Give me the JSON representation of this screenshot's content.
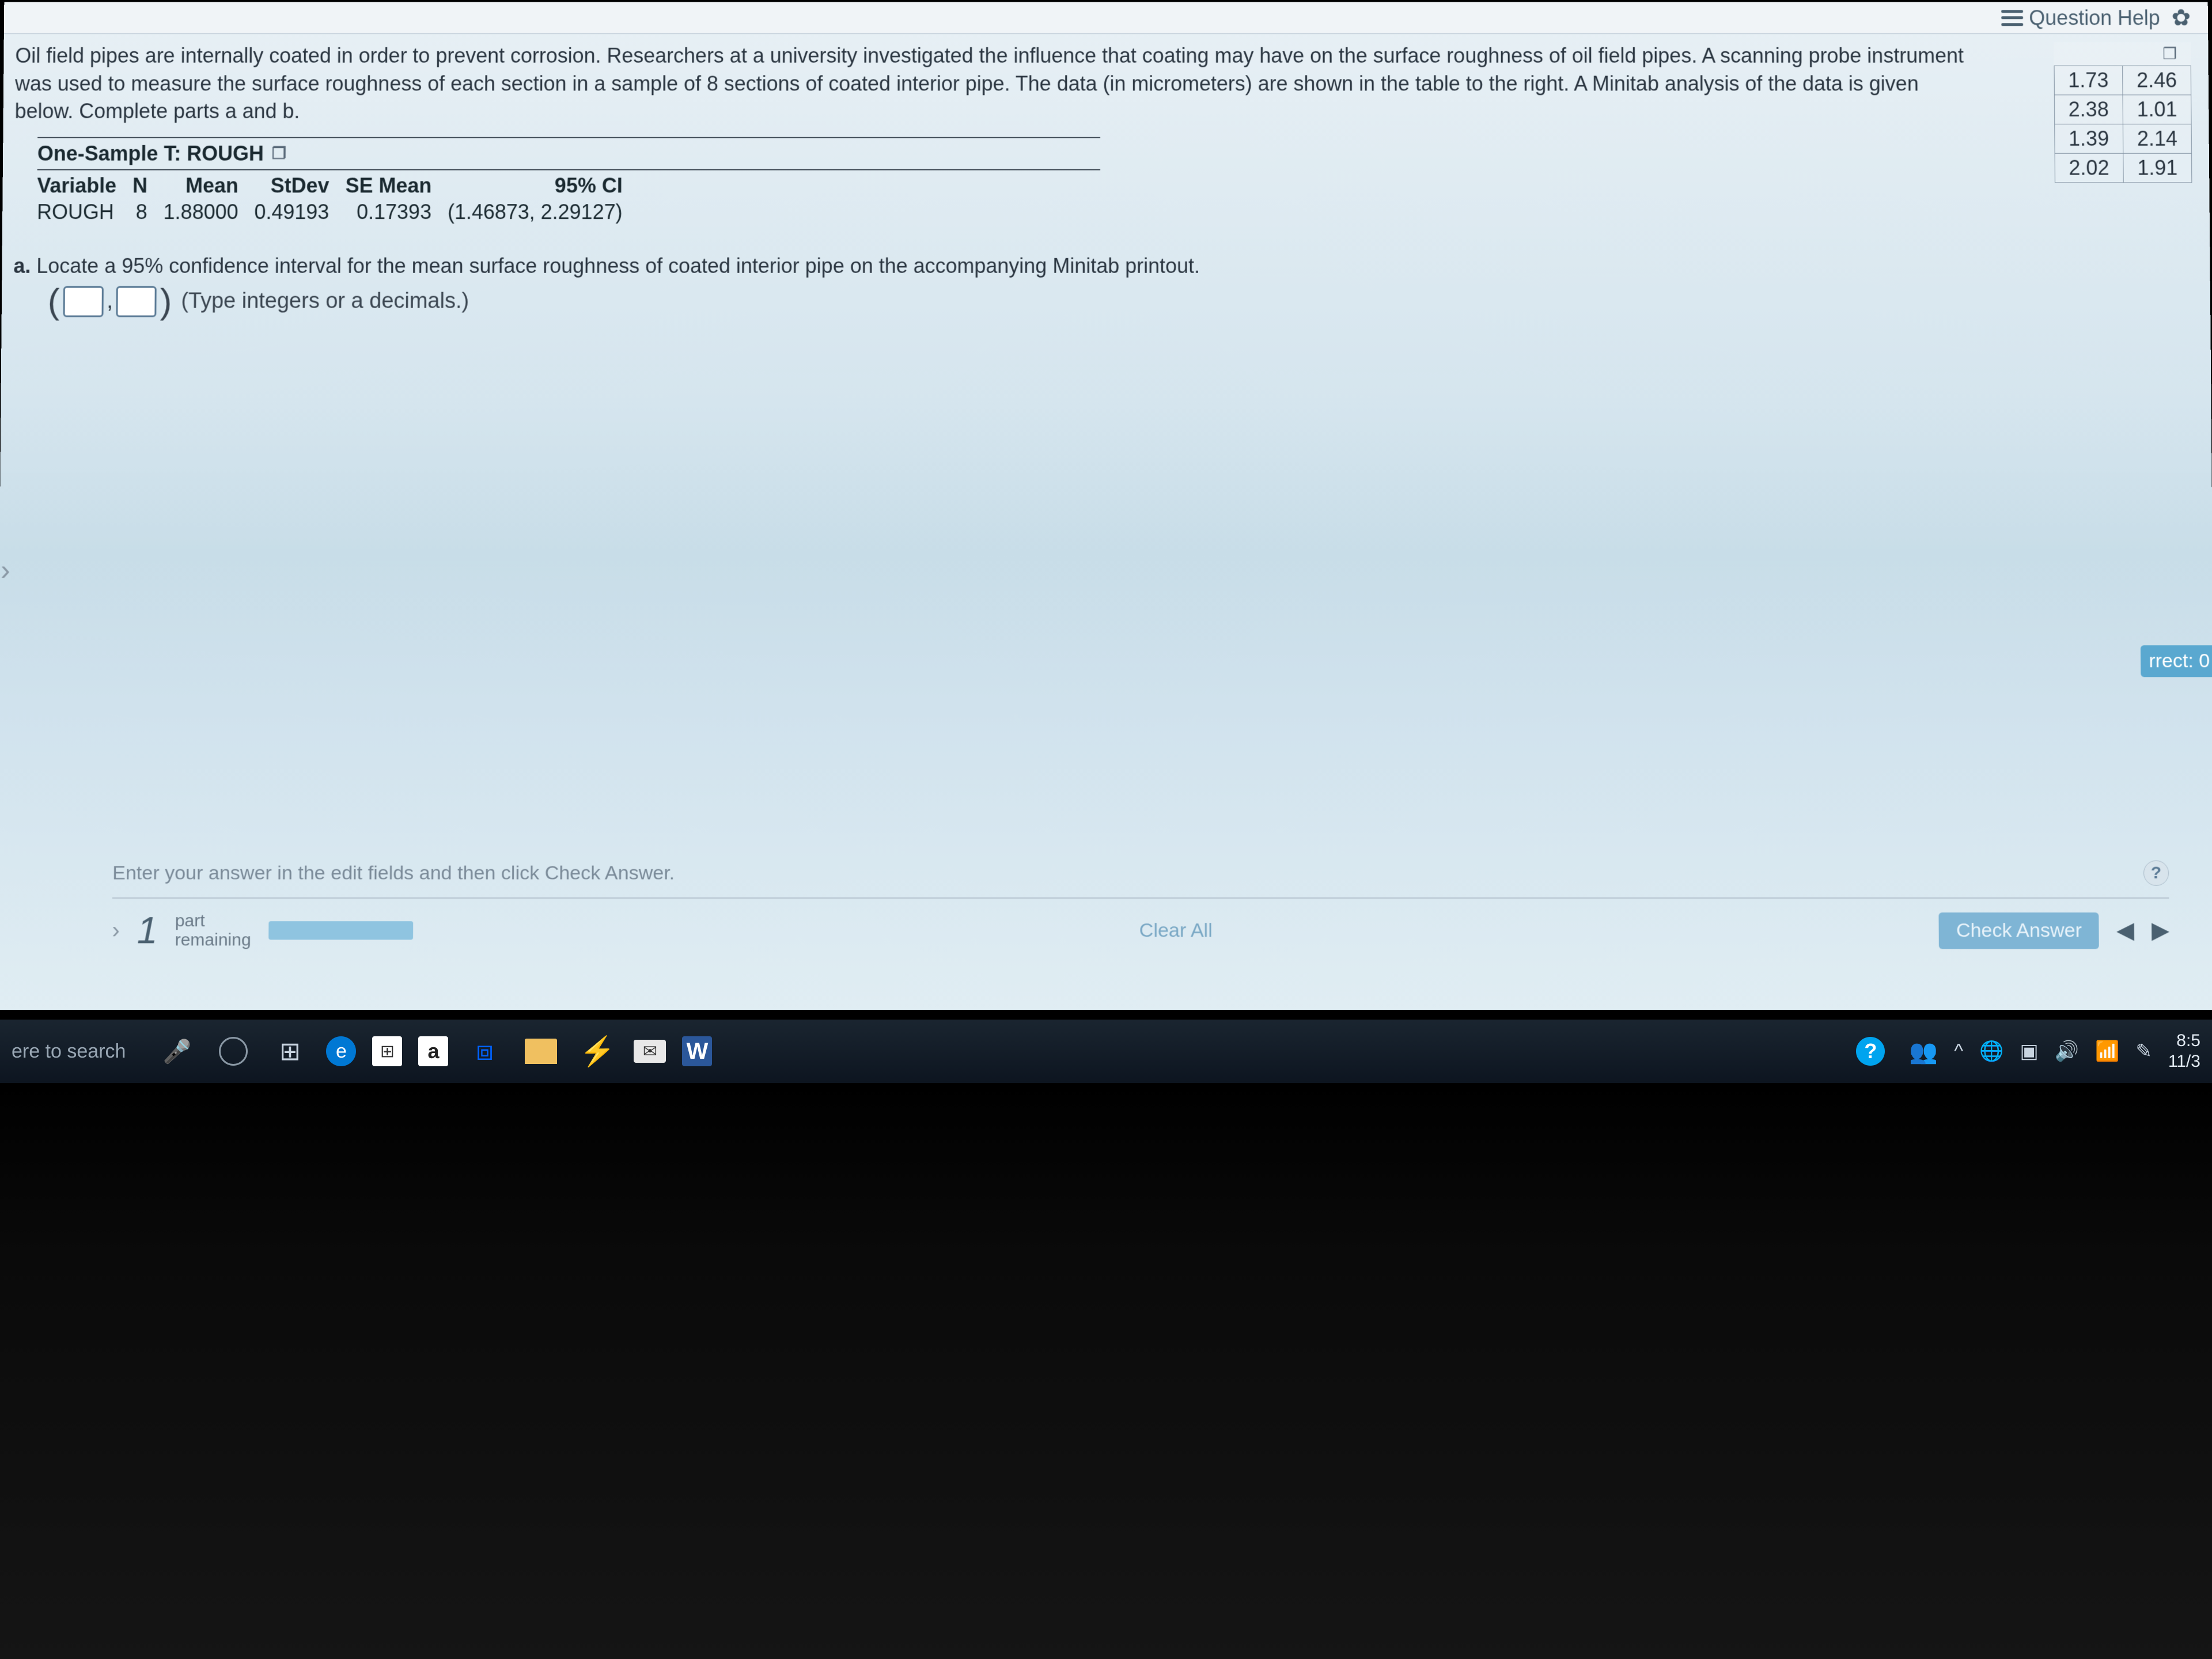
{
  "topbar": {
    "question_help": "Question Help"
  },
  "problem": {
    "text": "Oil field pipes are internally coated in order to prevent corrosion. Researchers at a university investigated the influence that coating may have on the surface roughness of oil field pipes. A scanning probe instrument was used to measure the surface roughness of each section in a sample of 8 sections of coated interior pipe. The data (in micrometers) are shown in the table to the right. A Minitab analysis of the data is given below. Complete parts a and b."
  },
  "data": {
    "rows": [
      [
        "1.73",
        "2.46"
      ],
      [
        "2.38",
        "1.01"
      ],
      [
        "1.39",
        "2.14"
      ],
      [
        "2.02",
        "1.91"
      ]
    ]
  },
  "minitab": {
    "title": "One-Sample T: ROUGH",
    "headers": [
      "Variable",
      "N",
      "Mean",
      "StDev",
      "SE Mean",
      "95% CI"
    ],
    "row": [
      "ROUGH",
      "8",
      "1.88000",
      "0.49193",
      "0.17393",
      "(1.46873, 2.29127)"
    ]
  },
  "part_a": {
    "label": "a.",
    "text": "Locate a 95% confidence interval for the mean surface roughness of coated interior pipe on the accompanying Minitab printout.",
    "hint": "(Type integers or a decimals.)"
  },
  "correct_badge": "rrect: 0",
  "footer": {
    "hint": "Enter your answer in the edit fields and then click Check Answer.",
    "parts_num": "1",
    "parts_line1": "part",
    "parts_line2": "remaining",
    "clear_all": "Clear All",
    "check": "Check Answer"
  },
  "taskbar": {
    "search": "ere to search",
    "time1": "8:5",
    "time2": "11/3"
  }
}
